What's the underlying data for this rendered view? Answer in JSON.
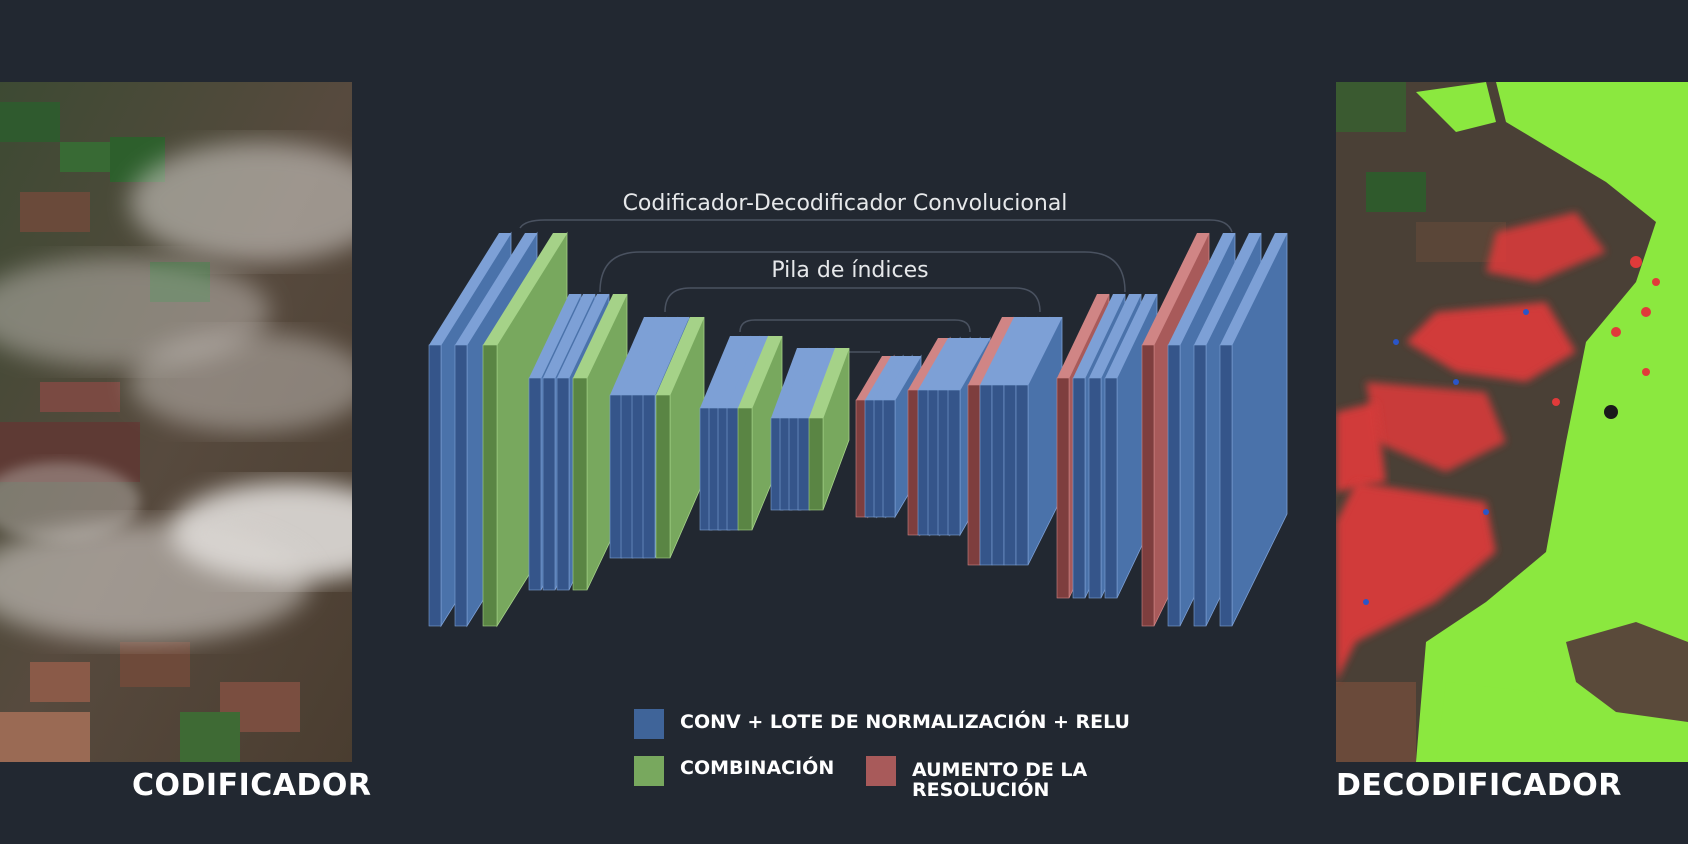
{
  "colors": {
    "background": "#222831",
    "conv": "#4a72aa",
    "pool": "#78a85e",
    "upsample": "#a85a5a",
    "segment_field": "#8be83f",
    "segment_building": "#e03a3a",
    "segment_water": "#2a55c8"
  },
  "diagram": {
    "title": "Codificador-Decodificador Convolucional",
    "subtitle": "Pila de índices"
  },
  "encoder_label": "CODIFICADOR",
  "decoder_label": "DECODIFICADOR",
  "legend": {
    "conv": "CONV + LOTE DE NORMALIZACIÓN + RELU",
    "pool": "COMBINACIÓN",
    "upsample_line1": "AUMENTO DE LA",
    "upsample_line2": "RESOLUCIÓN"
  }
}
